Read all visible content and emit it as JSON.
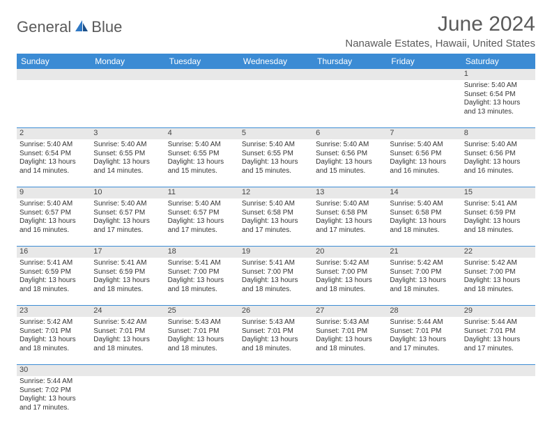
{
  "logo": {
    "text1": "General",
    "text2": "Blue"
  },
  "title": "June 2024",
  "location": "Nanawale Estates, Hawaii, United States",
  "header_bg": "#3b8bd4",
  "weekdays": [
    "Sunday",
    "Monday",
    "Tuesday",
    "Wednesday",
    "Thursday",
    "Friday",
    "Saturday"
  ],
  "weeks": [
    {
      "nums": [
        "",
        "",
        "",
        "",
        "",
        "",
        "1"
      ],
      "cells": [
        null,
        null,
        null,
        null,
        null,
        null,
        {
          "sr": "Sunrise: 5:40 AM",
          "ss": "Sunset: 6:54 PM",
          "d1": "Daylight: 13 hours",
          "d2": "and 13 minutes."
        }
      ]
    },
    {
      "nums": [
        "2",
        "3",
        "4",
        "5",
        "6",
        "7",
        "8"
      ],
      "cells": [
        {
          "sr": "Sunrise: 5:40 AM",
          "ss": "Sunset: 6:54 PM",
          "d1": "Daylight: 13 hours",
          "d2": "and 14 minutes."
        },
        {
          "sr": "Sunrise: 5:40 AM",
          "ss": "Sunset: 6:55 PM",
          "d1": "Daylight: 13 hours",
          "d2": "and 14 minutes."
        },
        {
          "sr": "Sunrise: 5:40 AM",
          "ss": "Sunset: 6:55 PM",
          "d1": "Daylight: 13 hours",
          "d2": "and 15 minutes."
        },
        {
          "sr": "Sunrise: 5:40 AM",
          "ss": "Sunset: 6:55 PM",
          "d1": "Daylight: 13 hours",
          "d2": "and 15 minutes."
        },
        {
          "sr": "Sunrise: 5:40 AM",
          "ss": "Sunset: 6:56 PM",
          "d1": "Daylight: 13 hours",
          "d2": "and 15 minutes."
        },
        {
          "sr": "Sunrise: 5:40 AM",
          "ss": "Sunset: 6:56 PM",
          "d1": "Daylight: 13 hours",
          "d2": "and 16 minutes."
        },
        {
          "sr": "Sunrise: 5:40 AM",
          "ss": "Sunset: 6:56 PM",
          "d1": "Daylight: 13 hours",
          "d2": "and 16 minutes."
        }
      ]
    },
    {
      "nums": [
        "9",
        "10",
        "11",
        "12",
        "13",
        "14",
        "15"
      ],
      "cells": [
        {
          "sr": "Sunrise: 5:40 AM",
          "ss": "Sunset: 6:57 PM",
          "d1": "Daylight: 13 hours",
          "d2": "and 16 minutes."
        },
        {
          "sr": "Sunrise: 5:40 AM",
          "ss": "Sunset: 6:57 PM",
          "d1": "Daylight: 13 hours",
          "d2": "and 17 minutes."
        },
        {
          "sr": "Sunrise: 5:40 AM",
          "ss": "Sunset: 6:57 PM",
          "d1": "Daylight: 13 hours",
          "d2": "and 17 minutes."
        },
        {
          "sr": "Sunrise: 5:40 AM",
          "ss": "Sunset: 6:58 PM",
          "d1": "Daylight: 13 hours",
          "d2": "and 17 minutes."
        },
        {
          "sr": "Sunrise: 5:40 AM",
          "ss": "Sunset: 6:58 PM",
          "d1": "Daylight: 13 hours",
          "d2": "and 17 minutes."
        },
        {
          "sr": "Sunrise: 5:40 AM",
          "ss": "Sunset: 6:58 PM",
          "d1": "Daylight: 13 hours",
          "d2": "and 18 minutes."
        },
        {
          "sr": "Sunrise: 5:41 AM",
          "ss": "Sunset: 6:59 PM",
          "d1": "Daylight: 13 hours",
          "d2": "and 18 minutes."
        }
      ]
    },
    {
      "nums": [
        "16",
        "17",
        "18",
        "19",
        "20",
        "21",
        "22"
      ],
      "cells": [
        {
          "sr": "Sunrise: 5:41 AM",
          "ss": "Sunset: 6:59 PM",
          "d1": "Daylight: 13 hours",
          "d2": "and 18 minutes."
        },
        {
          "sr": "Sunrise: 5:41 AM",
          "ss": "Sunset: 6:59 PM",
          "d1": "Daylight: 13 hours",
          "d2": "and 18 minutes."
        },
        {
          "sr": "Sunrise: 5:41 AM",
          "ss": "Sunset: 7:00 PM",
          "d1": "Daylight: 13 hours",
          "d2": "and 18 minutes."
        },
        {
          "sr": "Sunrise: 5:41 AM",
          "ss": "Sunset: 7:00 PM",
          "d1": "Daylight: 13 hours",
          "d2": "and 18 minutes."
        },
        {
          "sr": "Sunrise: 5:42 AM",
          "ss": "Sunset: 7:00 PM",
          "d1": "Daylight: 13 hours",
          "d2": "and 18 minutes."
        },
        {
          "sr": "Sunrise: 5:42 AM",
          "ss": "Sunset: 7:00 PM",
          "d1": "Daylight: 13 hours",
          "d2": "and 18 minutes."
        },
        {
          "sr": "Sunrise: 5:42 AM",
          "ss": "Sunset: 7:00 PM",
          "d1": "Daylight: 13 hours",
          "d2": "and 18 minutes."
        }
      ]
    },
    {
      "nums": [
        "23",
        "24",
        "25",
        "26",
        "27",
        "28",
        "29"
      ],
      "cells": [
        {
          "sr": "Sunrise: 5:42 AM",
          "ss": "Sunset: 7:01 PM",
          "d1": "Daylight: 13 hours",
          "d2": "and 18 minutes."
        },
        {
          "sr": "Sunrise: 5:42 AM",
          "ss": "Sunset: 7:01 PM",
          "d1": "Daylight: 13 hours",
          "d2": "and 18 minutes."
        },
        {
          "sr": "Sunrise: 5:43 AM",
          "ss": "Sunset: 7:01 PM",
          "d1": "Daylight: 13 hours",
          "d2": "and 18 minutes."
        },
        {
          "sr": "Sunrise: 5:43 AM",
          "ss": "Sunset: 7:01 PM",
          "d1": "Daylight: 13 hours",
          "d2": "and 18 minutes."
        },
        {
          "sr": "Sunrise: 5:43 AM",
          "ss": "Sunset: 7:01 PM",
          "d1": "Daylight: 13 hours",
          "d2": "and 18 minutes."
        },
        {
          "sr": "Sunrise: 5:44 AM",
          "ss": "Sunset: 7:01 PM",
          "d1": "Daylight: 13 hours",
          "d2": "and 17 minutes."
        },
        {
          "sr": "Sunrise: 5:44 AM",
          "ss": "Sunset: 7:01 PM",
          "d1": "Daylight: 13 hours",
          "d2": "and 17 minutes."
        }
      ]
    },
    {
      "nums": [
        "30",
        "",
        "",
        "",
        "",
        "",
        ""
      ],
      "cells": [
        {
          "sr": "Sunrise: 5:44 AM",
          "ss": "Sunset: 7:02 PM",
          "d1": "Daylight: 13 hours",
          "d2": "and 17 minutes."
        },
        null,
        null,
        null,
        null,
        null,
        null
      ]
    }
  ]
}
